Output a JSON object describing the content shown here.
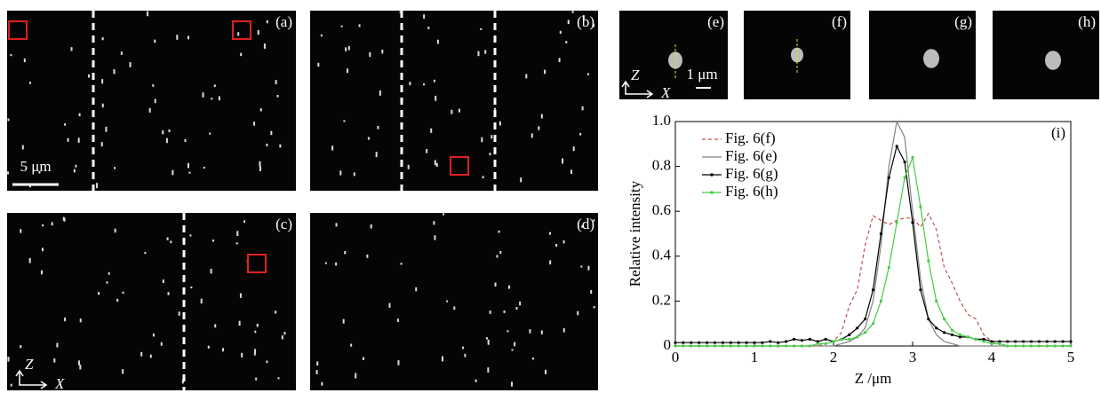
{
  "panel_labels": [
    "(a)",
    "(b)",
    "(c)",
    "(d)",
    "(e)",
    "(f)",
    "(g)",
    "(h)"
  ],
  "scale_bar_large": "5 μm",
  "scale_bar_small": "1 μm",
  "axis_z": "Z",
  "axis_x": "X",
  "chart_data": {
    "type": "line",
    "label": "(i)",
    "xlabel": "Z /μm",
    "ylabel": "Relative intensity",
    "xlim": [
      0,
      5
    ],
    "ylim": [
      0,
      1
    ],
    "xticks": [
      0,
      1,
      2,
      3,
      4,
      5
    ],
    "yticks": [
      0,
      0.2,
      0.4,
      0.6,
      0.8,
      {
        "value": 1,
        "label": "1.0"
      }
    ],
    "legend": "upper left",
    "x": [
      0,
      0.1,
      0.2,
      0.3,
      0.4,
      0.5,
      0.6,
      0.7,
      0.8,
      0.9,
      1,
      1.1,
      1.2,
      1.3,
      1.4,
      1.5,
      1.6,
      1.7,
      1.8,
      1.9,
      2,
      2.1,
      2.2,
      2.3,
      2.4,
      2.5,
      2.6,
      2.7,
      2.8,
      2.9,
      3,
      3.1,
      3.2,
      3.3,
      3.4,
      3.5,
      3.6,
      3.7,
      3.8,
      3.9,
      4,
      4.1,
      4.2,
      4.3,
      4.4,
      4.5,
      4.6,
      4.7,
      4.8,
      4.9,
      5
    ],
    "series": [
      {
        "name": "Fig. 6(f)",
        "color": "#c0504d",
        "dashed": true,
        "markers": false,
        "values": [
          0,
          0,
          0,
          0,
          0,
          0,
          0,
          0,
          0,
          0,
          0,
          0,
          0,
          0,
          0,
          0,
          0,
          0,
          0,
          0.01,
          0.02,
          0.06,
          0.18,
          0.25,
          0.45,
          0.58,
          0.56,
          0.54,
          0.56,
          0.57,
          0.57,
          0.53,
          0.59,
          0.52,
          0.35,
          0.28,
          0.2,
          0.14,
          0.12,
          0.05,
          0.02,
          0.01,
          0,
          0,
          0,
          0,
          0,
          0,
          0,
          0,
          0
        ]
      },
      {
        "name": "Fig. 6(e)",
        "color": "#808080",
        "dashed": false,
        "markers": false,
        "values": [
          0,
          0,
          0,
          0,
          0,
          0,
          0,
          0,
          0,
          0,
          0,
          0,
          0,
          0,
          0,
          0,
          0,
          0,
          0,
          0,
          0,
          0.01,
          0.02,
          0.04,
          0.08,
          0.2,
          0.45,
          0.8,
          1,
          0.93,
          0.6,
          0.3,
          0.12,
          0.05,
          0.02,
          0.01,
          0,
          0,
          0,
          0,
          0,
          0,
          0,
          0,
          0,
          0,
          0,
          0,
          0,
          0,
          0
        ]
      },
      {
        "name": "Fig. 6(g)",
        "color": "#000000",
        "dashed": false,
        "markers": true,
        "values": [
          0.015,
          0.015,
          0.015,
          0.015,
          0.015,
          0.015,
          0.015,
          0.015,
          0.015,
          0.015,
          0.015,
          0.015,
          0.02,
          0.015,
          0.02,
          0.03,
          0.025,
          0.03,
          0.02,
          0.03,
          0.02,
          0.03,
          0.05,
          0.08,
          0.12,
          0.25,
          0.5,
          0.75,
          0.89,
          0.82,
          0.55,
          0.25,
          0.12,
          0.08,
          0.06,
          0.05,
          0.04,
          0.04,
          0.03,
          0.03,
          0.02,
          0.02,
          0.02,
          0.02,
          0.02,
          0.02,
          0.02,
          0.02,
          0.02,
          0.02,
          0.02
        ]
      },
      {
        "name": "Fig. 6(h)",
        "color": "#44cc44",
        "dashed": false,
        "markers": true,
        "values": [
          0,
          0,
          0,
          0,
          0,
          0,
          0,
          0,
          0,
          0,
          0,
          0,
          0,
          0,
          0,
          0,
          0,
          0,
          0.01,
          0.01,
          0.02,
          0.03,
          0.03,
          0.04,
          0.06,
          0.1,
          0.2,
          0.35,
          0.55,
          0.75,
          0.84,
          0.62,
          0.38,
          0.2,
          0.12,
          0.07,
          0.05,
          0.04,
          0.03,
          0.02,
          0.01,
          0.01,
          0,
          0,
          0,
          0,
          0,
          0,
          0,
          0,
          0
        ]
      }
    ]
  }
}
